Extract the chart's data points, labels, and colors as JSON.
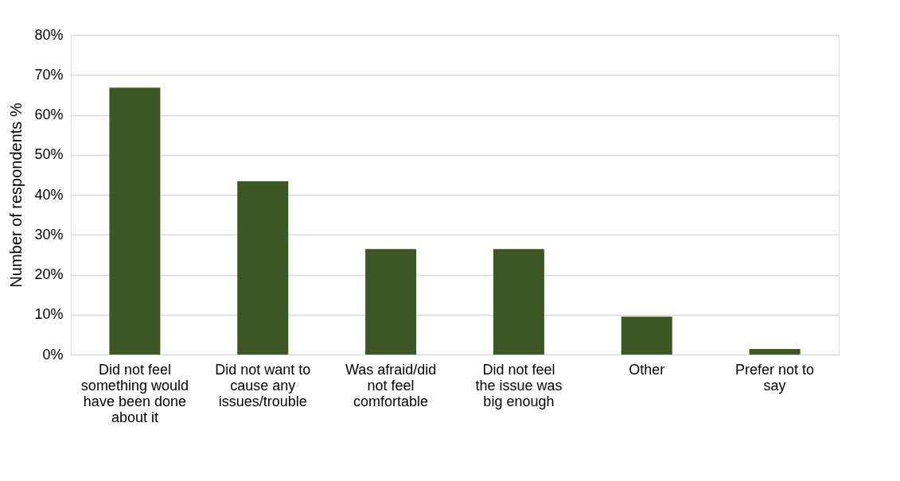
{
  "chart_data": {
    "type": "bar",
    "ylabel": "Number of respondents %",
    "categories": [
      "Did not feel something would have been done about it",
      "Did not want to cause any issues/trouble",
      "Was afraid/did not feel comfortable",
      "Did not feel the issue was big enough",
      "Other",
      "Prefer not to say"
    ],
    "values": [
      66.8,
      43.4,
      26.4,
      26.4,
      9.5,
      1.4
    ],
    "color": "#3b5723",
    "ylim": [
      0,
      80
    ],
    "yticks": [
      {
        "value": 0,
        "label": "0%"
      },
      {
        "value": 10,
        "label": "10%"
      },
      {
        "value": 20,
        "label": "20%"
      },
      {
        "value": 30,
        "label": "30%"
      },
      {
        "value": 40,
        "label": "40%"
      },
      {
        "value": 50,
        "label": "50%"
      },
      {
        "value": 60,
        "label": "60%"
      },
      {
        "value": 70,
        "label": "70%"
      },
      {
        "value": 80,
        "label": "80%"
      }
    ],
    "grid": "y"
  }
}
